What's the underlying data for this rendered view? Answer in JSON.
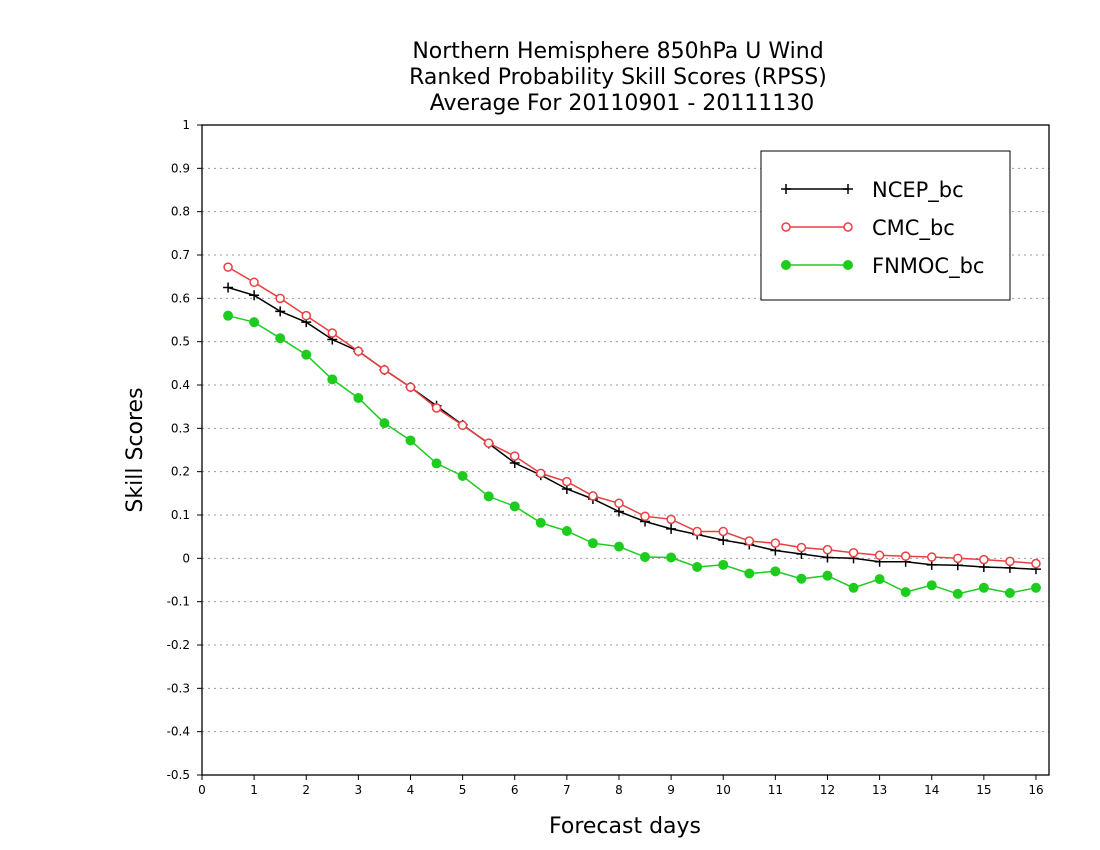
{
  "chart_data": {
    "type": "line",
    "title_lines": [
      "Northern Hemisphere 850hPa U Wind",
      "Ranked Probability Skill Scores (RPSS)",
      "Average For 20110901 - 20111130"
    ],
    "xlabel": "Forecast days",
    "ylabel": "Skill Scores",
    "xlim": [
      0,
      16.25
    ],
    "ylim": [
      -0.5,
      1
    ],
    "x_ticks": [
      0,
      1,
      2,
      3,
      4,
      5,
      6,
      7,
      8,
      9,
      10,
      11,
      12,
      13,
      14,
      15,
      16
    ],
    "y_ticks": [
      -0.5,
      -0.4,
      -0.3,
      -0.2,
      -0.1,
      0,
      0.1,
      0.2,
      0.3,
      0.4,
      0.5,
      0.6,
      0.7,
      0.8,
      0.9,
      1
    ],
    "y_tick_labels": [
      "-0.5",
      "-0.4",
      "-0.3",
      "-0.2",
      "-0.1",
      "0",
      "0.1",
      "0.2",
      "0.3",
      "0.4",
      "0.5",
      "0.6",
      "0.7",
      "0.8",
      "0.9",
      "1"
    ],
    "grid": "horizontal dotted",
    "legend_position": "top-right",
    "x": [
      0.5,
      1,
      1.5,
      2,
      2.5,
      3,
      3.5,
      4,
      4.5,
      5,
      5.5,
      6,
      6.5,
      7,
      7.5,
      8,
      8.5,
      9,
      9.5,
      10,
      10.5,
      11,
      11.5,
      12,
      12.5,
      13,
      13.5,
      14,
      14.5,
      15,
      15.5,
      16
    ],
    "series": [
      {
        "name": "NCEP_bc",
        "color": "#000000",
        "marker": "plus",
        "values": [
          0.625,
          0.607,
          0.57,
          0.545,
          0.505,
          0.478,
          0.435,
          0.395,
          0.352,
          0.308,
          0.265,
          0.22,
          0.192,
          0.16,
          0.137,
          0.108,
          0.085,
          0.068,
          0.055,
          0.042,
          0.032,
          0.018,
          0.01,
          0.002,
          0.0,
          -0.008,
          -0.008,
          -0.015,
          -0.016,
          -0.02,
          -0.022,
          -0.025
        ]
      },
      {
        "name": "CMC_bc",
        "color": "#e84040",
        "marker": "open-circle",
        "values": [
          0.672,
          0.637,
          0.6,
          0.56,
          0.52,
          0.478,
          0.435,
          0.395,
          0.347,
          0.307,
          0.266,
          0.236,
          0.196,
          0.177,
          0.144,
          0.127,
          0.097,
          0.09,
          0.062,
          0.062,
          0.04,
          0.035,
          0.025,
          0.02,
          0.013,
          0.007,
          0.005,
          0.003,
          0.0,
          -0.003,
          -0.007,
          -0.012
        ]
      },
      {
        "name": "FNMOC_bc",
        "color": "#1ecc1e",
        "marker": "filled-circle",
        "values": [
          0.56,
          0.545,
          0.508,
          0.47,
          0.413,
          0.37,
          0.312,
          0.272,
          0.219,
          0.19,
          0.143,
          0.12,
          0.082,
          0.063,
          0.035,
          0.027,
          0.003,
          0.002,
          -0.02,
          -0.015,
          -0.035,
          -0.03,
          -0.047,
          -0.04,
          -0.068,
          -0.048,
          -0.078,
          -0.062,
          -0.082,
          -0.068,
          -0.08,
          -0.068
        ]
      }
    ]
  }
}
